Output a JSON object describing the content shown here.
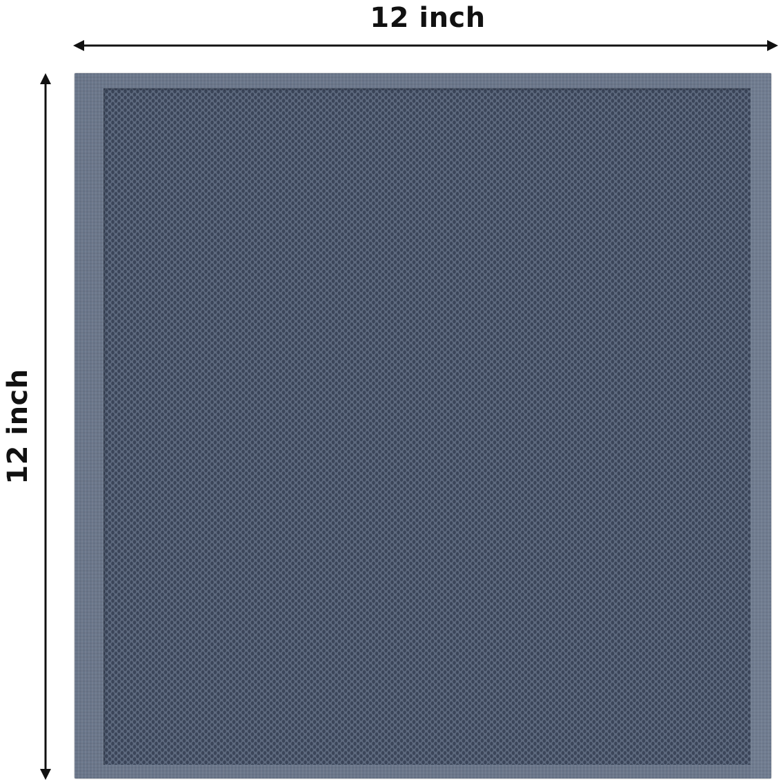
{
  "dimensions": {
    "width_label": "12 inch",
    "height_label": "12 inch"
  },
  "product": {
    "name_icon": "waffle-towel",
    "color": "#5f6b80"
  }
}
